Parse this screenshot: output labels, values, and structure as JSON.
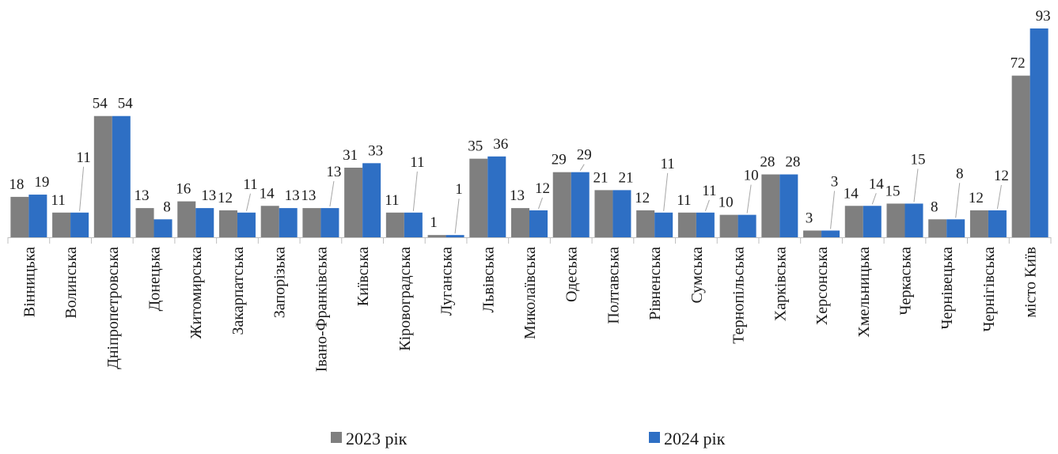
{
  "chart_data": {
    "type": "bar",
    "categories": [
      "Вінницька",
      "Волинська",
      "Дніпропетровська",
      "Донецька",
      "Житомирська",
      "Закарпатська",
      "Запорізька",
      "Івано-Франківська",
      "Київська",
      "Кіровоградська",
      "Луганська",
      "Львівська",
      "Миколаївська",
      "Одеська",
      "Полтавська",
      "Рівненська",
      "Сумська",
      "Тернопільська",
      "Харківська",
      "Херсонська",
      "Хмельницька",
      "Черкаська",
      "Чернівецька",
      "Чернігівська",
      "місто Київ"
    ],
    "series": [
      {
        "name": "2023 рік",
        "color": "#7f7f7f",
        "values": [
          18,
          11,
          54,
          13,
          16,
          12,
          14,
          13,
          31,
          11,
          1,
          35,
          13,
          29,
          21,
          12,
          11,
          10,
          28,
          3,
          14,
          15,
          8,
          12,
          72
        ]
      },
      {
        "name": "2024 рік",
        "color": "#2e6fc4",
        "values": [
          19,
          11,
          54,
          8,
          13,
          11,
          13,
          13,
          33,
          11,
          1,
          36,
          12,
          29,
          21,
          11,
          11,
          10,
          28,
          3,
          14,
          15,
          8,
          12,
          93
        ]
      }
    ],
    "ylim": [
      0,
      93
    ],
    "grid": false,
    "legend_position": "bottom"
  }
}
